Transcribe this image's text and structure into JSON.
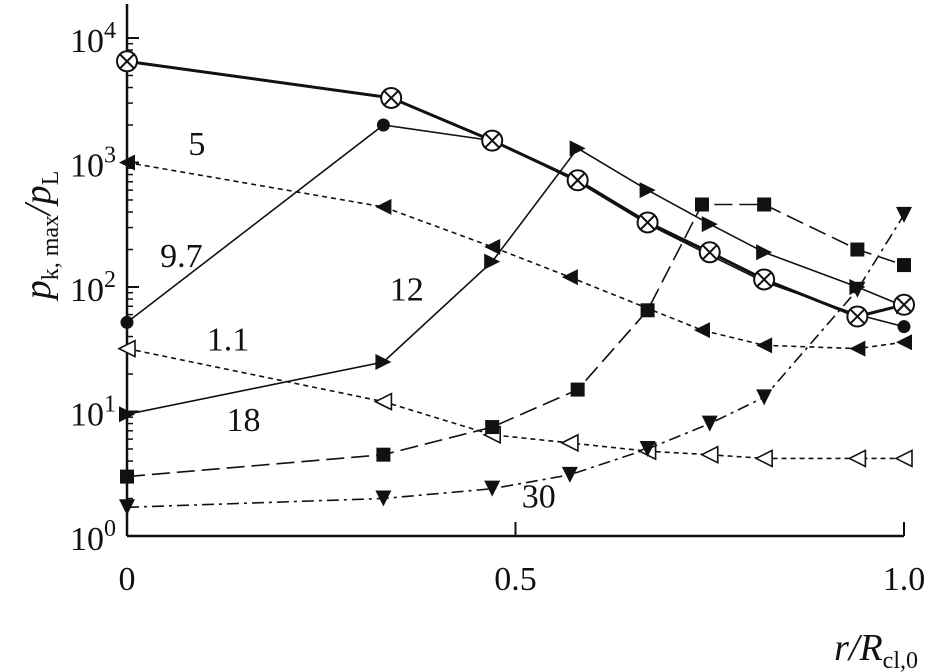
{
  "chart_data": {
    "type": "line",
    "title": "",
    "xlabel": {
      "main": "r/R",
      "sub": "cl,0"
    },
    "ylabel": {
      "main": "p",
      "sub": "k, max",
      "tail": "/p",
      "sub2": "L"
    },
    "xscale": "linear",
    "yscale": "log",
    "xlim": [
      0,
      1.0
    ],
    "ylim": [
      1,
      10000
    ],
    "x_ticks": [
      {
        "value": 0,
        "label": "0"
      },
      {
        "value": 0.5,
        "label": "0.5"
      },
      {
        "value": 1.0,
        "label": "1.0"
      }
    ],
    "y_ticks": [
      {
        "value": 1,
        "base": "10",
        "exp": "0"
      },
      {
        "value": 10,
        "base": "10",
        "exp": "1"
      },
      {
        "value": 100,
        "base": "10",
        "exp": "2"
      },
      {
        "value": 1000,
        "base": "10",
        "exp": "3"
      },
      {
        "value": 10000,
        "base": "10",
        "exp": "4"
      }
    ],
    "grid": false,
    "series": [
      {
        "name": "1.1",
        "marker": "triangle-left-open",
        "line": "dotted",
        "x": [
          0,
          0.33,
          0.47,
          0.57,
          0.67,
          0.75,
          0.82,
          0.94,
          1.0
        ],
        "y": [
          32,
          12,
          6.5,
          5.6,
          4.8,
          4.5,
          4.2,
          4.2,
          4.2
        ]
      },
      {
        "name": "5",
        "marker": "triangle-left-filled",
        "line": "dotted",
        "x": [
          0,
          0.33,
          0.47,
          0.57,
          0.74,
          0.82,
          0.94,
          1.0
        ],
        "y": [
          1000,
          440,
          210,
          120,
          45,
          34,
          32,
          36
        ]
      },
      {
        "name": "9.7",
        "marker": "circle-filled",
        "line": "solid-thin",
        "x": [
          0,
          0.33,
          0.47,
          0.58,
          0.67,
          0.75,
          0.82,
          0.94,
          1.0
        ],
        "y": [
          52,
          2000,
          1500,
          700,
          320,
          180,
          110,
          60,
          48
        ]
      },
      {
        "name": "12",
        "marker": "triangle-right-filled",
        "line": "solid-thin",
        "x": [
          0,
          0.33,
          0.47,
          0.58,
          0.67,
          0.75,
          0.82,
          0.94,
          1.0
        ],
        "y": [
          9.5,
          25,
          160,
          1300,
          600,
          320,
          190,
          100,
          70
        ]
      },
      {
        "name": "18",
        "marker": "square-filled",
        "line": "long-dash",
        "x": [
          0,
          0.33,
          0.47,
          0.58,
          0.67,
          0.74,
          0.82,
          0.94,
          1.0
        ],
        "y": [
          3,
          4.5,
          7.5,
          15,
          65,
          460,
          460,
          200,
          150
        ]
      },
      {
        "name": "30",
        "marker": "triangle-down-filled",
        "line": "dash-dot",
        "x": [
          0,
          0.33,
          0.47,
          0.57,
          0.67,
          0.75,
          0.82,
          0.94,
          1.0
        ],
        "y": [
          1.7,
          2,
          2.4,
          3.1,
          5,
          8,
          13,
          95,
          380
        ]
      },
      {
        "name": "",
        "marker": "circle-x-open",
        "line": "solid-thick",
        "x": [
          0,
          0.34,
          0.47,
          0.58,
          0.67,
          0.75,
          0.82,
          0.94,
          1.0
        ],
        "y": [
          6500,
          3300,
          1500,
          720,
          330,
          190,
          115,
          58,
          72
        ]
      }
    ],
    "annotations": [
      {
        "text": "5",
        "x": 0.09,
        "y": 1150
      },
      {
        "text": "9.7",
        "x": 0.07,
        "y": 145
      },
      {
        "text": "12",
        "x": 0.36,
        "y": 78
      },
      {
        "text": "1.1",
        "x": 0.13,
        "y": 31
      },
      {
        "text": "18",
        "x": 0.15,
        "y": 7
      },
      {
        "text": "30",
        "x": 0.53,
        "y": 1.7
      }
    ]
  }
}
